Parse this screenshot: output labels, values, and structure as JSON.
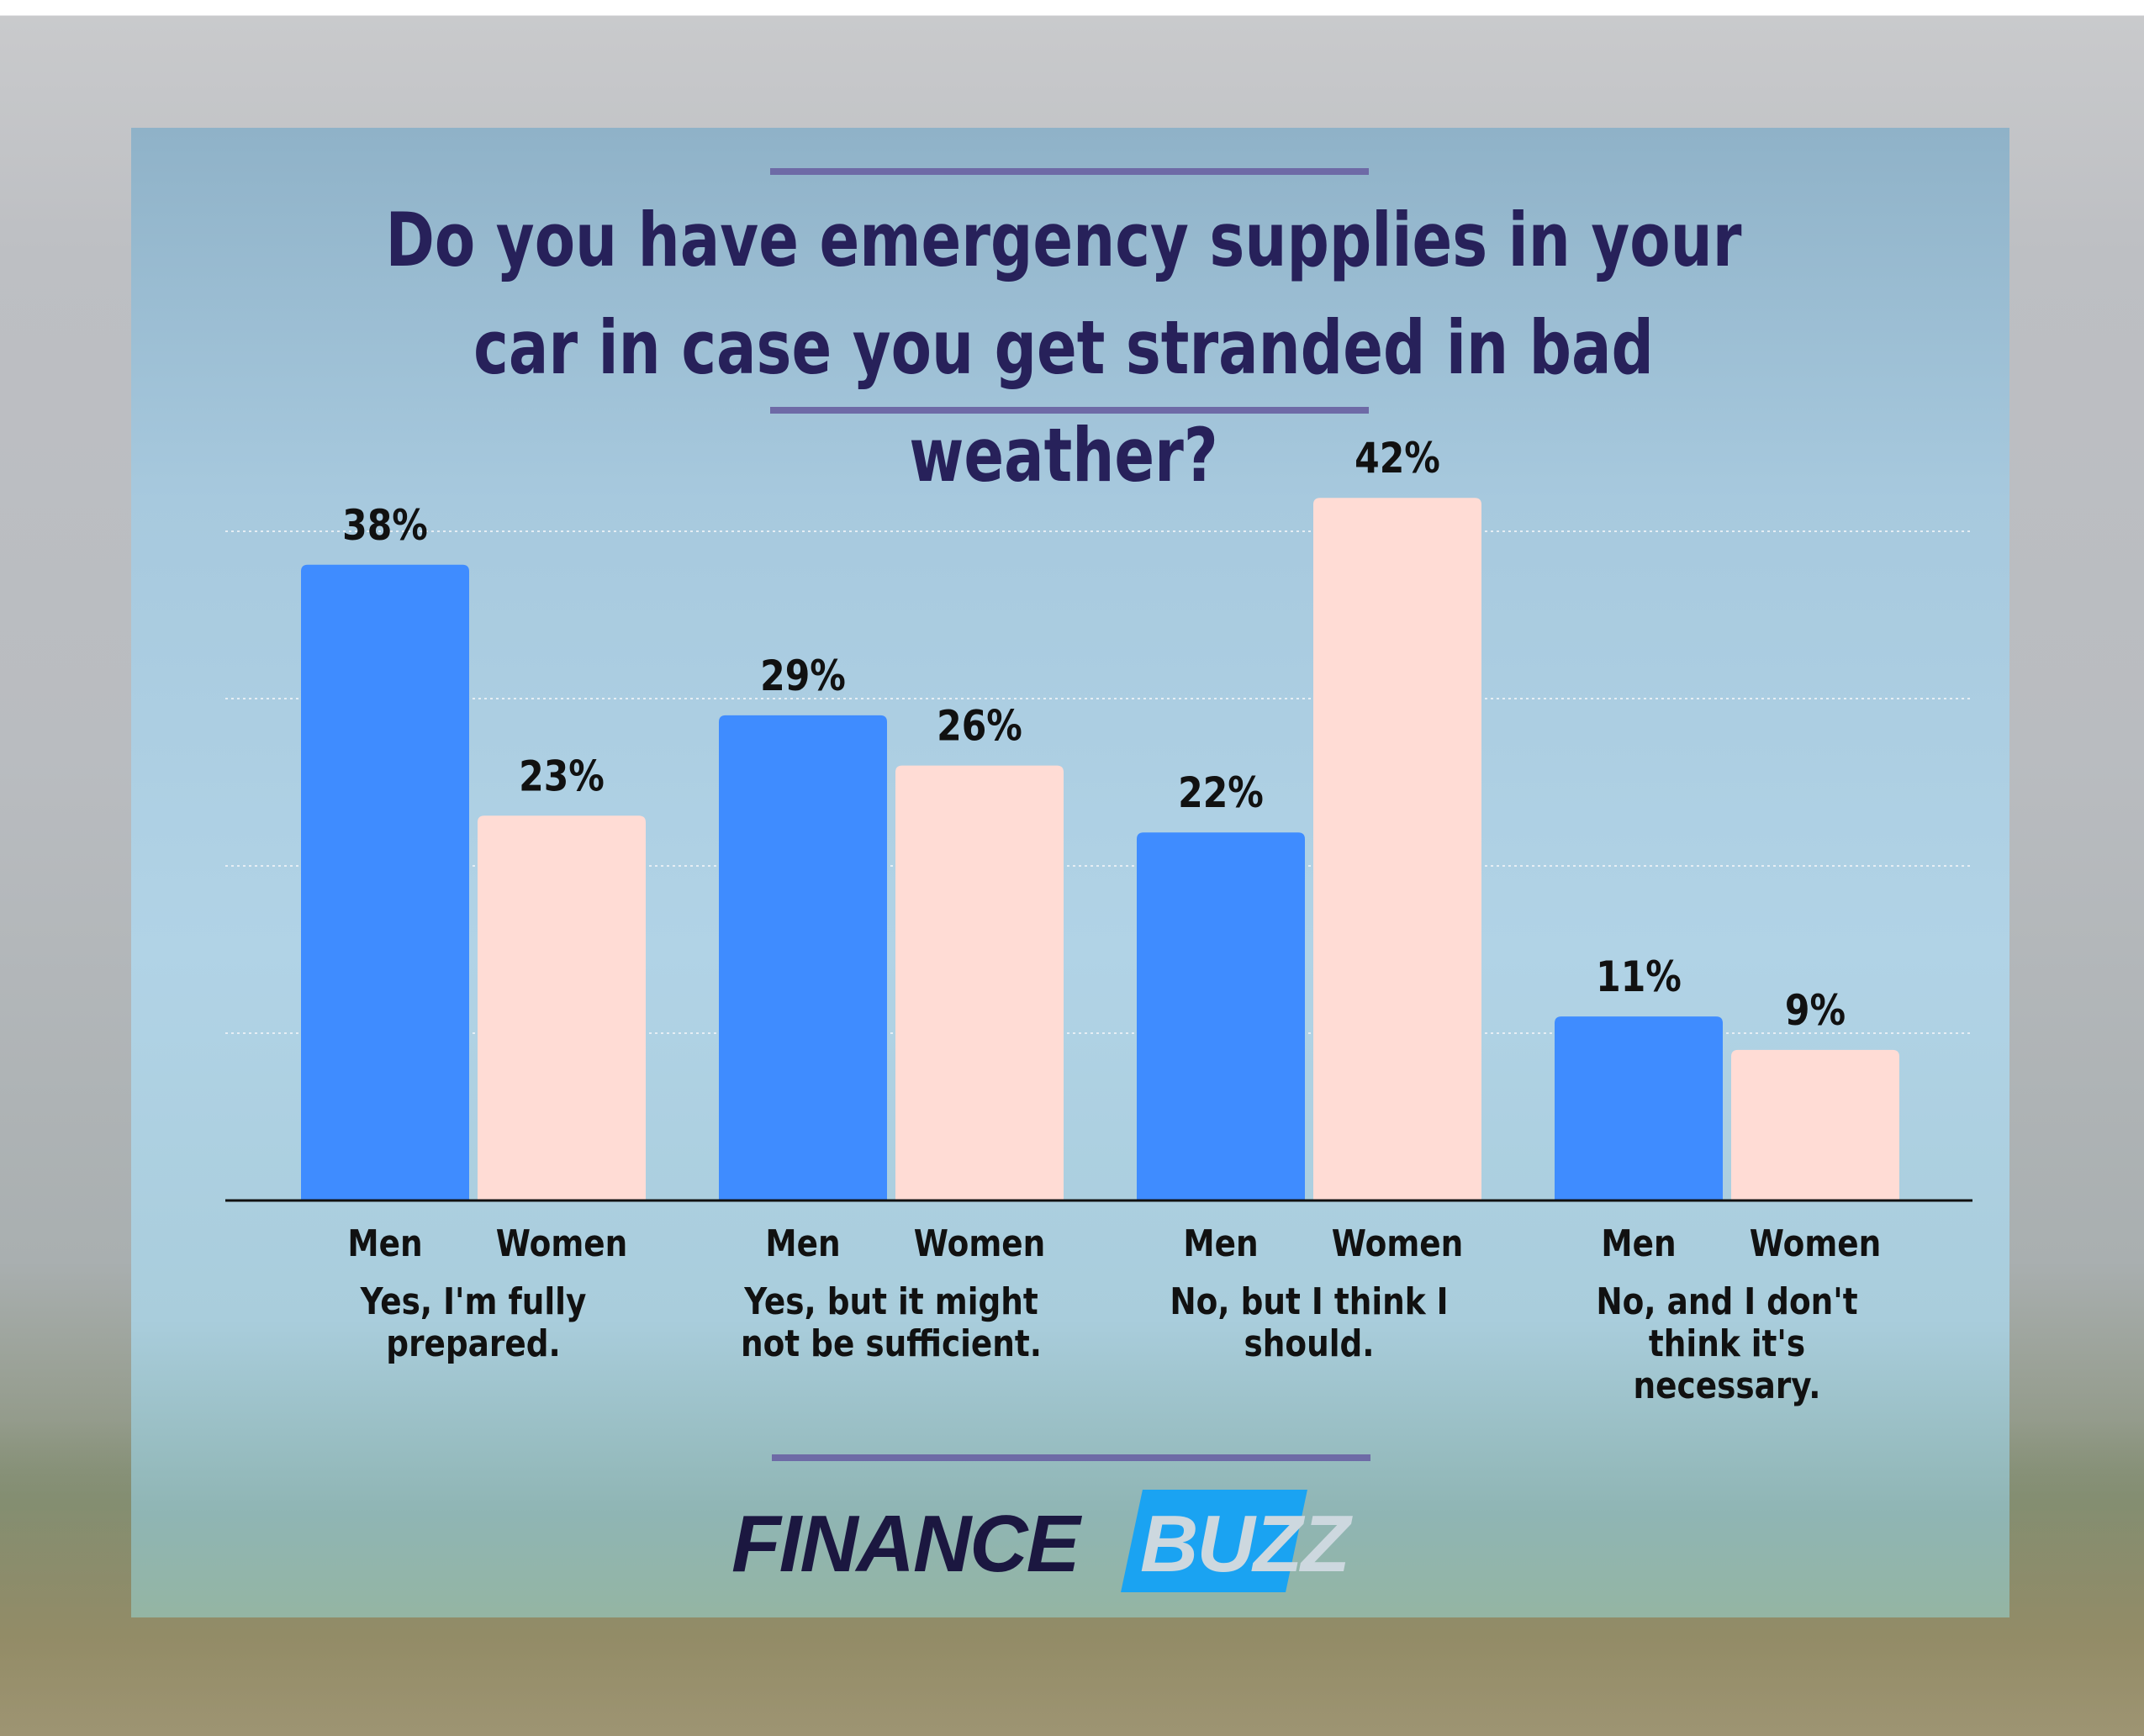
{
  "title": "Do you have emergency supplies in your car in case you get stranded in bad weather?",
  "logo": {
    "part1": "FINANCE",
    "part2": "BUZZ"
  },
  "colors": {
    "men": "#3f8cff",
    "women": "#ffdcd5",
    "title": "#27215a",
    "rule": "#6e6aa6"
  },
  "chart_data": {
    "type": "bar",
    "title": "Do you have emergency supplies in your car in case you get stranded in bad weather?",
    "categories": [
      "Yes, I'm fully prepared.",
      "Yes, but it might not be sufficient.",
      "No, but I think I should.",
      "No, and I don't think it's necessary."
    ],
    "series": [
      {
        "name": "Men",
        "values": [
          38,
          29,
          22,
          11
        ],
        "labels": [
          "38%",
          "29%",
          "22%",
          "11%"
        ]
      },
      {
        "name": "Women",
        "values": [
          23,
          26,
          42,
          9
        ],
        "labels": [
          "23%",
          "26%",
          "42%",
          "9%"
        ]
      }
    ],
    "xlabel": "",
    "ylabel": "",
    "ylim": [
      0,
      40
    ],
    "grid": true,
    "legend": "none"
  }
}
